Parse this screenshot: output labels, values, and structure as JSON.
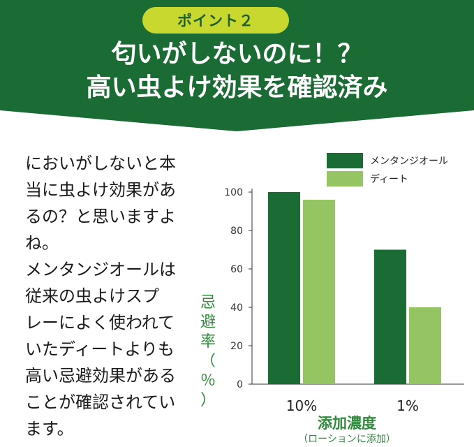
{
  "banner": {
    "badge": "ポイント２",
    "line1": "匂いがしないのに！？",
    "line2": "高い虫よけ効果を確認済み",
    "colors": {
      "banner": "#1b6b34",
      "badge": "#c9d82e"
    }
  },
  "body": {
    "paragraphs": [
      [
        "においがしないと本",
        "当に虫よけ効果があ",
        "るの？と思いますよ",
        "ね。"
      ],
      [
        "メンタンジオールは",
        "従来の虫よけスプ",
        "レーによく使われて",
        "いたディートよりも",
        "高い忌避効果がある",
        "ことが確認されてい",
        "ます。"
      ]
    ]
  },
  "chart_data": {
    "type": "bar",
    "categories": [
      "10%",
      "1%"
    ],
    "series": [
      {
        "name": "メンタンジオール",
        "values": [
          100,
          70
        ],
        "color": "#1b6b34"
      },
      {
        "name": "ディート",
        "values": [
          96,
          40
        ],
        "color": "#95c462"
      }
    ],
    "ylabel": "忌避率（％）",
    "xlabel": "添加濃度",
    "xlabel_sub": "（ローションに添加）",
    "ylim": [
      0,
      100
    ],
    "yticks": [
      0,
      20,
      40,
      60,
      80,
      100
    ],
    "legend": "top-right",
    "grid": false
  }
}
